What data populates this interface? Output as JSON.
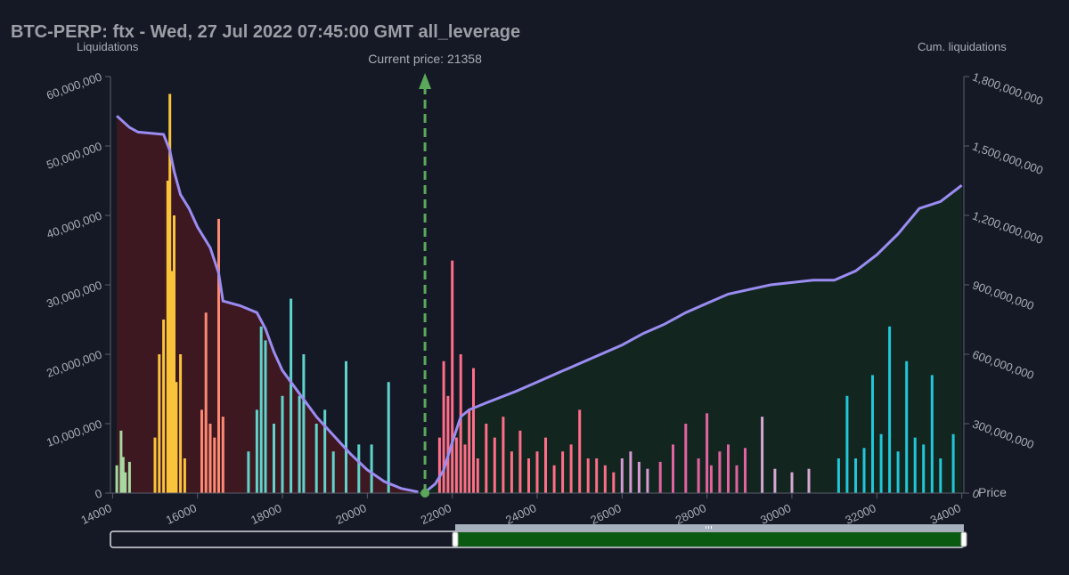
{
  "chart_data": {
    "type": "bar",
    "title": "BTC-PERP: ftx - Wed, 27 Jul 2022 07:45:00 GMT all_leverage",
    "ylabel_left": "Liquidations",
    "ylabel_right": "Cum. liquidations",
    "xlabel": "Price",
    "current_price_label": "Current price: 21358",
    "current_price": 21358,
    "xlim": [
      13950,
      34050
    ],
    "ylim_left": [
      0,
      60000000
    ],
    "ylim_right": [
      0,
      1800000000
    ],
    "x_ticks": [
      14000,
      16000,
      18000,
      20000,
      22000,
      24000,
      26000,
      28000,
      30000,
      32000,
      34000
    ],
    "x_tick_labels": [
      "14000",
      "16000",
      "18000",
      "20000",
      "22000",
      "24000",
      "26000",
      "28000",
      "30000",
      "32000",
      "34000"
    ],
    "y_left_ticks": [
      0,
      10000000,
      20000000,
      30000000,
      40000000,
      50000000,
      60000000
    ],
    "y_left_tick_labels": [
      "0",
      "10,000,000",
      "20,000,000",
      "30,000,000",
      "40,000,000",
      "50,000,000",
      "60,000,000"
    ],
    "y_right_ticks": [
      0,
      300000000,
      600000000,
      900000000,
      1200000000,
      1500000000,
      1800000000
    ],
    "y_right_tick_labels": [
      "0",
      "300,000,000",
      "600,000,000",
      "900,000,000",
      "1,200,000,000",
      "1,500,000,000",
      "1,800,000,000"
    ],
    "grid": false,
    "colors": {
      "background": "#151925",
      "cum_line": "#9b8cf2",
      "long_fill": "#3d1820",
      "short_fill": "#12261f",
      "current_price": "#5ba85b",
      "slider_fill": "#0a5a12",
      "slider_bar": "#a7b0bd"
    },
    "series": [
      {
        "color": "#a8d8a0",
        "x": [
          14100,
          14200,
          14250,
          14300,
          14400
        ],
        "values": [
          4000000,
          9000000,
          5200000,
          3000000,
          4500000
        ]
      },
      {
        "color": "#f9c33b",
        "x": [
          15000,
          15100,
          15200,
          15300,
          15350,
          15400,
          15450,
          15500,
          15600,
          15700
        ],
        "values": [
          8000000,
          20000000,
          25000000,
          45000000,
          57500000,
          32000000,
          40000000,
          16000000,
          20000000,
          5000000
        ]
      },
      {
        "color": "#fd8972",
        "x": [
          16100,
          16200,
          16300,
          16400,
          16500,
          16600
        ],
        "values": [
          12000000,
          26000000,
          10000000,
          8000000,
          39500000,
          11000000
        ]
      },
      {
        "color": "#5fd4cc",
        "x": [
          17200,
          17400,
          17500,
          17600,
          17800,
          18000,
          18200,
          18400,
          18500,
          18800,
          19000,
          19200,
          19500,
          19800,
          20100,
          20500
        ],
        "values": [
          6000000,
          12000000,
          24000000,
          22000000,
          10000000,
          14000000,
          28000000,
          14000000,
          20000000,
          10000000,
          12000000,
          6000000,
          19000000,
          7000000,
          7000000,
          16000000
        ]
      },
      {
        "color": "#ff6d88",
        "x": [
          21700,
          21800,
          21900,
          22000,
          22100,
          22200,
          22300,
          22400,
          22500,
          22600,
          22800,
          23000,
          23200,
          23400,
          23600,
          23800,
          24000,
          24200,
          24400,
          24600,
          24800,
          25000,
          25200,
          25400,
          25600,
          25800
        ],
        "values": [
          8000000,
          19000000,
          14000000,
          33500000,
          8000000,
          20000000,
          7000000,
          12000000,
          18000000,
          5000000,
          10000000,
          8000000,
          11000000,
          6000000,
          9000000,
          5000000,
          6000000,
          8000000,
          4000000,
          6000000,
          7000000,
          12000000,
          5000000,
          5000000,
          4000000,
          3000000
        ]
      },
      {
        "color": "#d79ad3",
        "x": [
          26000,
          26200,
          26400,
          26600
        ],
        "values": [
          5000000,
          6000000,
          4500000,
          3500000
        ]
      },
      {
        "color": "#e362a0",
        "x": [
          26900,
          27200,
          27500,
          27800,
          28000,
          28100,
          28300,
          28500,
          28700,
          28900
        ],
        "values": [
          4500000,
          7000000,
          10000000,
          5000000,
          11500000,
          4000000,
          6000000,
          7000000,
          4000000,
          6500000
        ]
      },
      {
        "color": "#d7a8d6",
        "x": [
          29300,
          29600,
          30000,
          30400
        ],
        "values": [
          11000000,
          3500000,
          3000000,
          3500000
        ]
      },
      {
        "color": "#21c7d8",
        "x": [
          31100,
          31300,
          31500,
          31700,
          31900,
          32100,
          32300,
          32500,
          32700,
          32900,
          33100,
          33300,
          33500,
          33800
        ],
        "values": [
          5000000,
          14000000,
          5000000,
          6500000,
          17000000,
          8500000,
          24000000,
          6000000,
          19000000,
          8000000,
          7000000,
          17000000,
          5000000,
          8500000
        ]
      }
    ],
    "cumulative_long": {
      "x": [
        14100,
        14400,
        14600,
        15200,
        15350,
        15450,
        15600,
        15800,
        16000,
        16300,
        16500,
        16600,
        17000,
        17400,
        17600,
        17800,
        18000,
        18400,
        18800,
        19200,
        19600,
        20000,
        20400,
        20800,
        21200
      ],
      "values": [
        1630000000,
        1580000000,
        1560000000,
        1550000000,
        1480000000,
        1390000000,
        1290000000,
        1230000000,
        1150000000,
        1060000000,
        950000000,
        830000000,
        810000000,
        780000000,
        710000000,
        610000000,
        530000000,
        430000000,
        330000000,
        250000000,
        170000000,
        100000000,
        50000000,
        20000000,
        5000000
      ]
    },
    "cumulative_short": {
      "x": [
        21400,
        21600,
        21800,
        22000,
        22200,
        22400,
        22800,
        23500,
        24000,
        24500,
        25000,
        25500,
        26000,
        26500,
        27000,
        27500,
        28000,
        28500,
        29000,
        29500,
        30000,
        30500,
        31000,
        31500,
        32000,
        32500,
        33000,
        33500,
        34000
      ],
      "values": [
        10000000,
        40000000,
        100000000,
        220000000,
        330000000,
        360000000,
        390000000,
        440000000,
        480000000,
        520000000,
        560000000,
        600000000,
        640000000,
        690000000,
        730000000,
        780000000,
        820000000,
        860000000,
        880000000,
        900000000,
        910000000,
        920000000,
        920000000,
        960000000,
        1030000000,
        1120000000,
        1230000000,
        1260000000,
        1330000000
      ]
    }
  }
}
